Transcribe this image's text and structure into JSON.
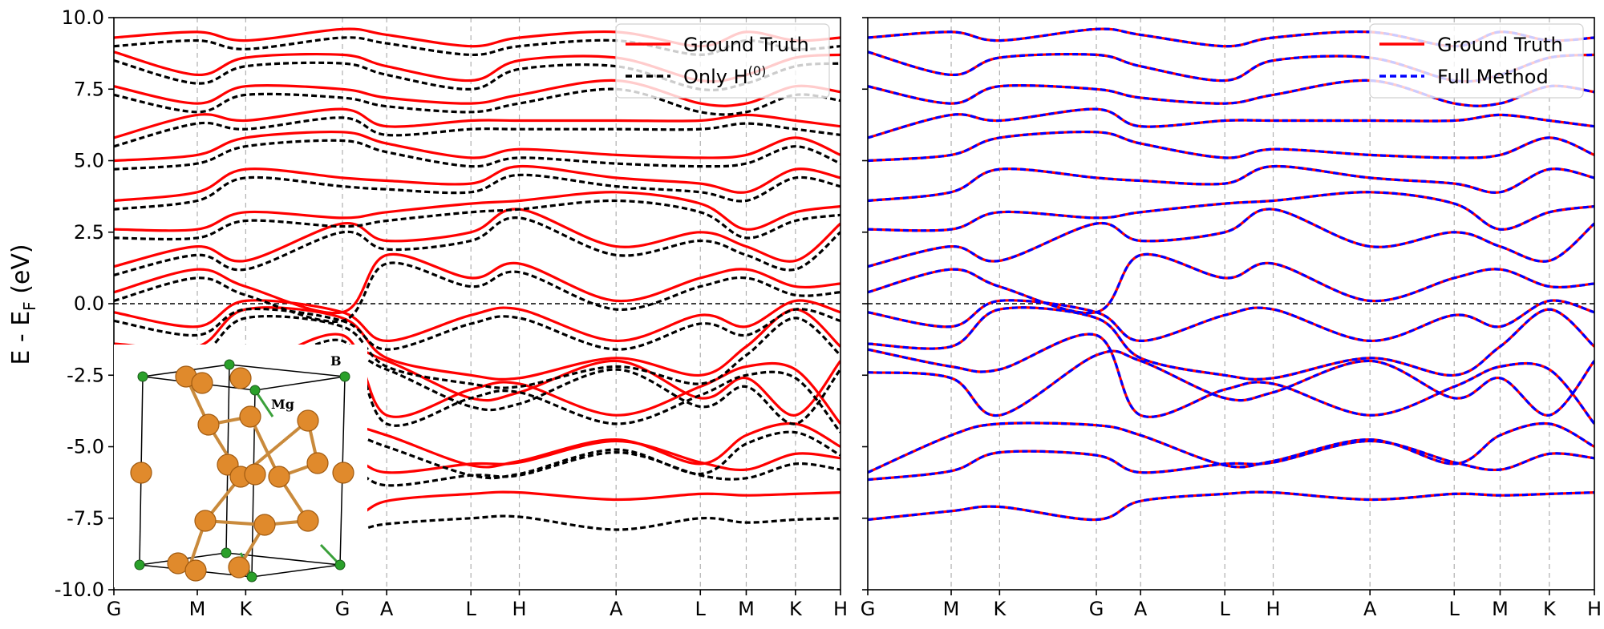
{
  "chart_data": {
    "type": "line",
    "ylabel_main": "E - E",
    "ylabel_sub": "F",
    "ylabel_tail": " (eV)",
    "ylim": [
      -10.0,
      10.0
    ],
    "yticks": [
      "10.0",
      "7.5",
      "5.0",
      "2.5",
      "0.0",
      "-2.5",
      "-5.0",
      "-7.5",
      "-10.0"
    ],
    "ytick_values": [
      10.0,
      7.5,
      5.0,
      2.5,
      0.0,
      -2.5,
      -5.0,
      -7.5,
      -10.0
    ],
    "fermi_level": 0.0,
    "colors": {
      "ground_truth": "#ff0000",
      "only_h0": "#000000",
      "full_method": "#0000ff",
      "grid": "#b0b0b0"
    },
    "panels": [
      {
        "name": "left",
        "kpath_labels": [
          "G",
          "M",
          "K",
          "G",
          "A",
          "L",
          "H",
          "A",
          "L",
          "M",
          "K",
          "H"
        ],
        "kpath_positions": [
          0.0,
          1.0,
          1.58,
          2.74,
          3.27,
          4.28,
          4.86,
          6.02,
          7.03,
          7.58,
          8.17,
          8.71
        ],
        "legend": [
          {
            "label": "Ground Truth",
            "style": "solid",
            "color": "#ff0000"
          },
          {
            "label": "Only H",
            "sup": "(0)",
            "style": "dashed",
            "color": "#000000"
          }
        ],
        "series": [
          {
            "name": "Ground Truth",
            "style": "solid",
            "color": "#ff0000",
            "note": "band energies vs k"
          },
          {
            "name": "Only H(0)",
            "style": "dashed",
            "color": "#000000",
            "note": "band energies vs k"
          }
        ],
        "inset": {
          "labels": {
            "b": "B",
            "mg": "Mg"
          }
        }
      },
      {
        "name": "right",
        "kpath_labels": [
          "G",
          "M",
          "K",
          "G",
          "A",
          "L",
          "H",
          "A",
          "L",
          "M",
          "K",
          "H"
        ],
        "kpath_positions": [
          0.0,
          1.0,
          1.58,
          2.74,
          3.27,
          4.28,
          4.86,
          6.02,
          7.03,
          7.58,
          8.17,
          8.71
        ],
        "legend": [
          {
            "label": "Ground Truth",
            "style": "solid",
            "color": "#ff0000"
          },
          {
            "label": "Full Method",
            "style": "dashed",
            "color": "#0000ff"
          }
        ],
        "series": [
          {
            "name": "Ground Truth",
            "style": "solid",
            "color": "#ff0000"
          },
          {
            "name": "Full Method",
            "style": "dashed",
            "color": "#0000ff"
          }
        ]
      }
    ],
    "bands_ground_truth": [
      [
        -7.55,
        -7.25,
        -7.1,
        -7.55,
        -6.9,
        -6.65,
        -6.6,
        -6.85,
        -6.65,
        -6.7,
        -6.65,
        -6.6
      ],
      [
        -6.15,
        -5.85,
        -5.2,
        -5.3,
        -5.9,
        -5.6,
        -5.55,
        -4.8,
        -5.55,
        -5.8,
        -5.25,
        -5.4
      ],
      [
        -5.9,
        -4.6,
        -4.2,
        -4.25,
        -4.6,
        -5.65,
        -5.5,
        -4.75,
        -5.6,
        -4.6,
        -4.2,
        -5.0
      ],
      [
        -2.4,
        -2.6,
        -3.9,
        -1.8,
        -2.0,
        -3.3,
        -3.1,
        -2.0,
        -3.3,
        -2.6,
        -3.9,
        -2.0
      ],
      [
        -1.6,
        -2.2,
        -2.3,
        -1.1,
        -3.9,
        -3.0,
        -2.8,
        -3.9,
        -2.9,
        -2.2,
        -2.3,
        -4.2
      ],
      [
        -1.4,
        -1.5,
        -0.2,
        -0.5,
        -1.9,
        -2.5,
        -2.6,
        -1.9,
        -2.5,
        -1.5,
        -0.2,
        -1.5
      ],
      [
        -0.3,
        -0.8,
        0.1,
        -0.3,
        -1.3,
        -0.4,
        -0.2,
        -1.3,
        -0.4,
        -0.8,
        0.1,
        -0.3
      ],
      [
        0.4,
        1.2,
        0.6,
        -0.3,
        1.7,
        0.9,
        1.4,
        0.1,
        0.9,
        1.2,
        0.6,
        0.7
      ],
      [
        1.3,
        2.0,
        1.5,
        2.8,
        2.2,
        2.5,
        3.3,
        2.0,
        2.5,
        2.0,
        1.5,
        2.8
      ],
      [
        2.6,
        2.6,
        3.2,
        3.0,
        3.2,
        3.5,
        3.6,
        3.9,
        3.5,
        2.6,
        3.2,
        3.4
      ],
      [
        3.6,
        3.9,
        4.7,
        4.4,
        4.3,
        4.2,
        4.8,
        4.4,
        4.2,
        3.9,
        4.7,
        4.4
      ],
      [
        5.0,
        5.2,
        5.8,
        6.0,
        5.6,
        5.1,
        5.4,
        5.2,
        5.1,
        5.2,
        5.8,
        5.2
      ],
      [
        5.8,
        6.6,
        6.4,
        6.8,
        6.2,
        6.4,
        6.4,
        6.4,
        6.4,
        6.6,
        6.4,
        6.2
      ],
      [
        7.6,
        7.0,
        7.6,
        7.5,
        7.2,
        7.0,
        7.3,
        7.8,
        7.0,
        7.0,
        7.6,
        7.4
      ],
      [
        8.8,
        8.0,
        8.6,
        8.7,
        8.3,
        7.8,
        8.5,
        8.6,
        7.8,
        8.0,
        8.6,
        8.7
      ],
      [
        9.3,
        9.5,
        9.2,
        9.6,
        9.4,
        9.0,
        9.3,
        9.5,
        9.0,
        9.5,
        9.2,
        9.3
      ]
    ],
    "bands_only_h0": [
      [
        -7.95,
        -7.7,
        -7.6,
        -7.95,
        -7.7,
        -7.5,
        -7.45,
        -7.9,
        -7.5,
        -7.65,
        -7.55,
        -7.5
      ],
      [
        -6.5,
        -6.1,
        -5.6,
        -5.7,
        -6.35,
        -6.0,
        -6.0,
        -5.2,
        -6.0,
        -6.1,
        -5.6,
        -5.8
      ],
      [
        -6.2,
        -4.9,
        -4.5,
        -4.55,
        -5.0,
        -6.0,
        -5.95,
        -5.1,
        -5.95,
        -4.9,
        -4.5,
        -5.3
      ],
      [
        -2.7,
        -2.9,
        -4.2,
        -2.0,
        -2.3,
        -3.6,
        -3.5,
        -2.3,
        -3.6,
        -2.9,
        -4.2,
        -2.3
      ],
      [
        -1.9,
        -2.5,
        -2.6,
        -1.3,
        -4.2,
        -3.3,
        -3.1,
        -4.2,
        -3.2,
        -2.5,
        -2.6,
        -4.5
      ],
      [
        -1.7,
        -1.8,
        -0.5,
        -0.8,
        -2.2,
        -2.8,
        -2.9,
        -2.2,
        -2.8,
        -1.8,
        -0.5,
        -1.8
      ],
      [
        -0.6,
        -1.1,
        -0.2,
        -0.6,
        -1.6,
        -0.7,
        -0.5,
        -1.6,
        -0.7,
        -1.1,
        -0.2,
        -0.6
      ],
      [
        0.1,
        0.9,
        0.3,
        -0.6,
        1.4,
        0.6,
        1.1,
        -0.2,
        0.6,
        0.9,
        0.3,
        0.4
      ],
      [
        1.0,
        1.7,
        1.2,
        2.5,
        1.9,
        2.2,
        3.0,
        1.7,
        2.2,
        1.7,
        1.2,
        2.5
      ],
      [
        2.3,
        2.3,
        2.9,
        2.7,
        2.9,
        3.2,
        3.3,
        3.6,
        3.2,
        2.3,
        2.9,
        3.1
      ],
      [
        3.3,
        3.6,
        4.4,
        4.1,
        4.0,
        3.9,
        4.5,
        4.1,
        3.9,
        3.6,
        4.4,
        4.1
      ],
      [
        4.7,
        4.9,
        5.5,
        5.7,
        5.3,
        4.8,
        5.1,
        4.9,
        4.8,
        4.9,
        5.5,
        4.9
      ],
      [
        5.5,
        6.3,
        6.1,
        6.5,
        5.9,
        6.1,
        6.1,
        6.1,
        6.1,
        6.3,
        6.1,
        5.9
      ],
      [
        7.3,
        6.7,
        7.3,
        7.2,
        6.9,
        6.7,
        7.0,
        7.5,
        6.7,
        6.7,
        7.3,
        7.1
      ],
      [
        8.5,
        7.7,
        8.3,
        8.4,
        8.0,
        7.5,
        8.2,
        8.3,
        7.5,
        7.7,
        8.3,
        8.4
      ],
      [
        9.0,
        9.2,
        8.9,
        9.3,
        9.1,
        8.7,
        9.0,
        9.2,
        8.7,
        9.2,
        8.9,
        9.0
      ]
    ]
  }
}
